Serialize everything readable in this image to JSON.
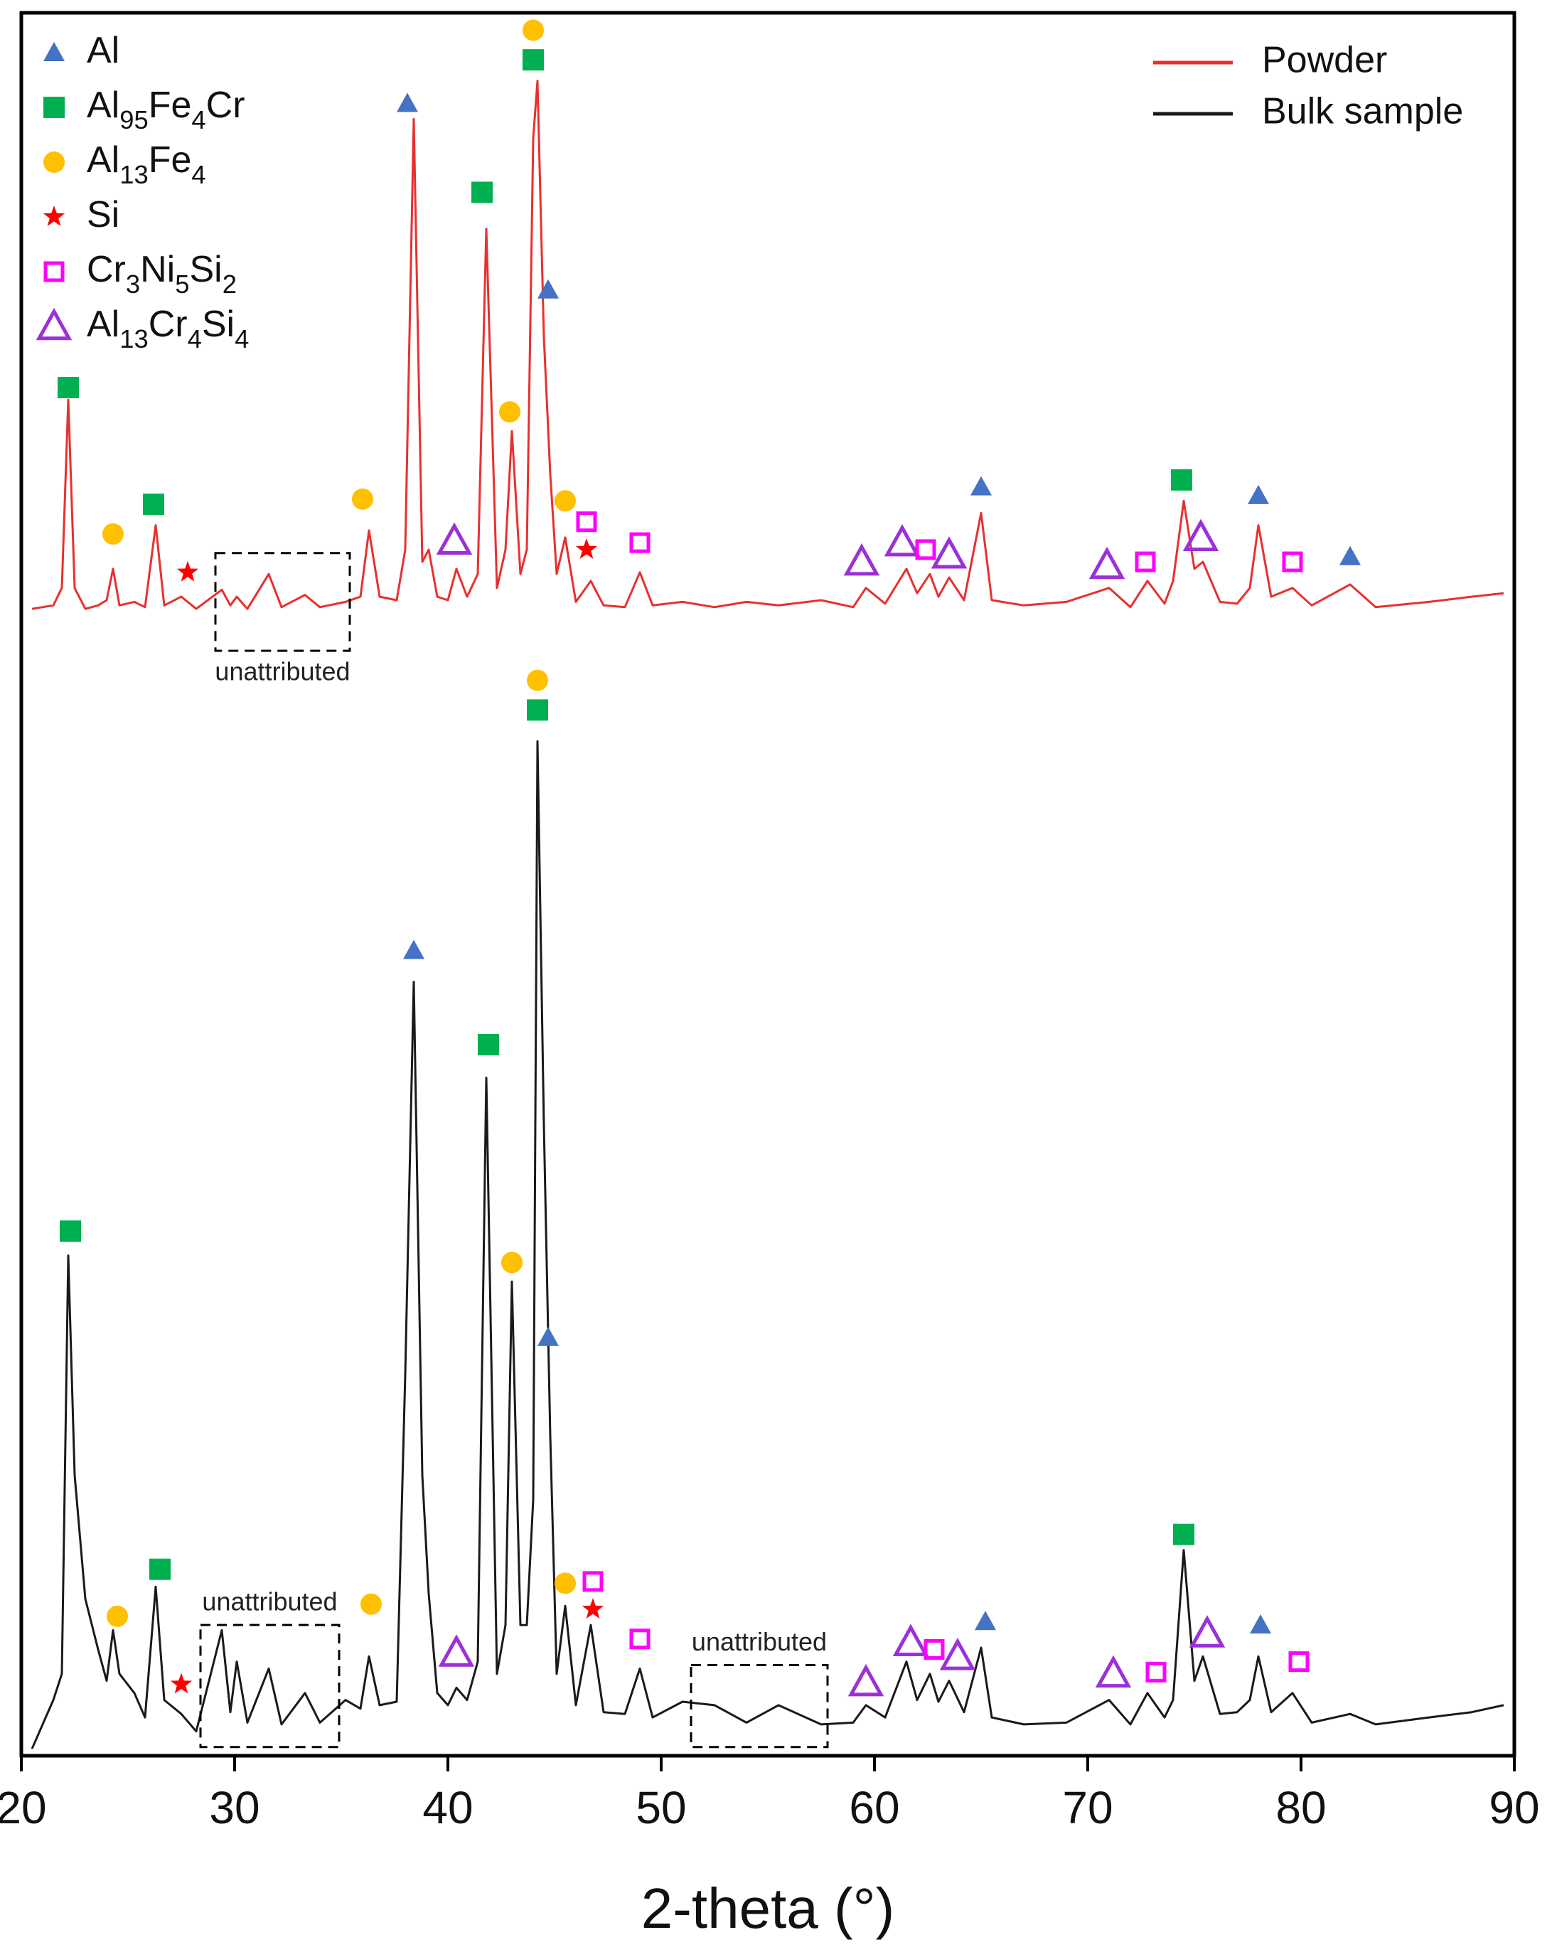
{
  "chart_data": {
    "type": "line",
    "xlabel": "2-theta (°)",
    "xlim": [
      20,
      90
    ],
    "xticks": [
      20,
      30,
      40,
      50,
      60,
      70,
      80,
      90
    ],
    "ylim": [
      0,
      100
    ],
    "x": [
      20.5,
      21.5,
      21.9,
      22.2,
      22.5,
      23.0,
      23.6,
      24.0,
      24.3,
      24.6,
      25.3,
      25.8,
      26.3,
      26.7,
      27.5,
      28.2,
      29.4,
      29.8,
      30.1,
      30.6,
      31.6,
      32.2,
      33.3,
      34.0,
      35.2,
      35.9,
      36.3,
      36.8,
      37.6,
      38.0,
      38.4,
      38.8,
      39.1,
      39.5,
      40.0,
      40.4,
      40.9,
      41.4,
      41.8,
      42.3,
      42.7,
      43.0,
      43.4,
      43.7,
      44.0,
      44.2,
      44.5,
      44.8,
      45.1,
      45.5,
      46.0,
      46.7,
      47.3,
      48.3,
      49.0,
      49.6,
      51.0,
      52.5,
      54.0,
      55.5,
      57.5,
      59.0,
      59.6,
      60.5,
      61.5,
      62.0,
      62.6,
      63.0,
      63.5,
      64.2,
      65.0,
      65.5,
      67.0,
      69.0,
      71.0,
      72.0,
      72.8,
      73.6,
      74.0,
      74.5,
      75.0,
      75.4,
      76.2,
      77.0,
      77.6,
      78.0,
      78.6,
      79.6,
      80.5,
      82.3,
      83.5,
      86.0,
      88.0,
      89.5
    ],
    "series": [
      {
        "name": "Powder",
        "color": "#e8302f",
        "values": [
          65.8,
          66.0,
          67.0,
          77.8,
          67.0,
          65.8,
          66.0,
          66.3,
          68.1,
          66.0,
          66.2,
          65.9,
          70.6,
          66.0,
          66.5,
          65.8,
          66.9,
          66.0,
          66.5,
          65.8,
          67.8,
          65.9,
          66.6,
          65.9,
          66.2,
          66.5,
          70.3,
          66.5,
          66.3,
          69.2,
          93.9,
          68.5,
          69.2,
          66.5,
          66.3,
          68.1,
          66.5,
          67.8,
          87.6,
          67.0,
          69.2,
          76.0,
          67.8,
          69.2,
          92.8,
          96.1,
          81.4,
          73.5,
          67.8,
          69.9,
          66.2,
          67.4,
          66.0,
          65.9,
          67.9,
          66.0,
          66.2,
          65.9,
          66.2,
          66.0,
          66.3,
          65.9,
          67.0,
          66.1,
          68.1,
          66.7,
          67.8,
          66.5,
          67.6,
          66.3,
          71.3,
          66.3,
          66.0,
          66.2,
          67.0,
          65.9,
          67.4,
          66.1,
          67.4,
          72.0,
          68.1,
          68.5,
          66.2,
          66.1,
          67.0,
          70.6,
          66.5,
          67.0,
          66.0,
          67.2,
          65.9,
          66.2,
          66.5,
          66.7
        ]
      },
      {
        "name": "Bulk sample",
        "color": "#1a1a1a",
        "values": [
          0.4,
          3.2,
          4.7,
          28.7,
          16.1,
          9.0,
          6.1,
          4.3,
          7.2,
          4.7,
          3.6,
          2.2,
          9.7,
          3.2,
          2.4,
          1.4,
          7.2,
          2.5,
          5.4,
          1.9,
          5.0,
          1.8,
          3.6,
          1.9,
          3.2,
          2.7,
          5.7,
          2.9,
          3.1,
          21.9,
          44.4,
          16.1,
          9.3,
          3.6,
          2.9,
          3.9,
          3.2,
          5.4,
          38.9,
          4.7,
          7.5,
          27.2,
          7.5,
          7.5,
          14.7,
          58.2,
          36.2,
          18.3,
          4.7,
          8.6,
          2.9,
          7.5,
          2.5,
          2.4,
          5.0,
          2.2,
          3.1,
          2.9,
          1.9,
          2.9,
          1.8,
          1.9,
          2.9,
          2.2,
          5.4,
          3.2,
          4.7,
          3.1,
          4.3,
          2.5,
          6.2,
          2.2,
          1.8,
          1.9,
          3.2,
          1.8,
          3.6,
          2.2,
          3.2,
          11.8,
          4.3,
          5.7,
          2.4,
          2.5,
          3.2,
          5.7,
          2.5,
          3.6,
          1.9,
          2.4,
          1.8,
          2.2,
          2.5,
          2.9
        ]
      }
    ],
    "phases": [
      {
        "name": "Al",
        "shape": "triangle",
        "color": "#4472c4"
      },
      {
        "name": "Al95Fe4Cr",
        "shape": "square",
        "color": "#00b050"
      },
      {
        "name": "Al13Fe4",
        "shape": "circle",
        "color": "#ffc000"
      },
      {
        "name": "Si",
        "shape": "star",
        "color": "#ff0000"
      },
      {
        "name": "Cr3Ni5Si2",
        "shape": "open-square",
        "color": "#ff00ff"
      },
      {
        "name": "Al13Cr4Si4",
        "shape": "open-triangle",
        "color": "#9b30d9"
      }
    ],
    "markers": [
      {
        "phase": 1,
        "x": 22.2,
        "y": 78.5
      },
      {
        "phase": 2,
        "x": 24.3,
        "y": 70.1
      },
      {
        "phase": 1,
        "x": 26.2,
        "y": 71.8
      },
      {
        "phase": 3,
        "x": 27.8,
        "y": 67.9
      },
      {
        "phase": 2,
        "x": 36.0,
        "y": 72.1
      },
      {
        "phase": 0,
        "x": 38.1,
        "y": 94.8
      },
      {
        "phase": 5,
        "x": 40.3,
        "y": 69.7
      },
      {
        "phase": 1,
        "x": 41.6,
        "y": 89.7
      },
      {
        "phase": 2,
        "x": 42.9,
        "y": 77.1
      },
      {
        "phase": 2,
        "x": 44.0,
        "y": 99.0
      },
      {
        "phase": 1,
        "x": 44.0,
        "y": 97.3
      },
      {
        "phase": 0,
        "x": 44.7,
        "y": 84.1
      },
      {
        "phase": 2,
        "x": 45.5,
        "y": 72.0
      },
      {
        "phase": 4,
        "x": 46.5,
        "y": 70.8
      },
      {
        "phase": 3,
        "x": 46.5,
        "y": 69.2
      },
      {
        "phase": 4,
        "x": 49.0,
        "y": 69.6
      },
      {
        "phase": 5,
        "x": 59.4,
        "y": 68.5
      },
      {
        "phase": 5,
        "x": 61.3,
        "y": 69.6
      },
      {
        "phase": 4,
        "x": 62.4,
        "y": 69.2
      },
      {
        "phase": 5,
        "x": 63.5,
        "y": 68.9
      },
      {
        "phase": 0,
        "x": 65.0,
        "y": 72.8
      },
      {
        "phase": 5,
        "x": 70.9,
        "y": 68.3
      },
      {
        "phase": 4,
        "x": 72.7,
        "y": 68.5
      },
      {
        "phase": 1,
        "x": 74.4,
        "y": 73.2
      },
      {
        "phase": 5,
        "x": 75.3,
        "y": 69.9
      },
      {
        "phase": 0,
        "x": 78.0,
        "y": 72.3
      },
      {
        "phase": 4,
        "x": 79.6,
        "y": 68.5
      },
      {
        "phase": 0,
        "x": 82.3,
        "y": 68.8
      },
      {
        "phase": 1,
        "x": 22.3,
        "y": 30.1
      },
      {
        "phase": 2,
        "x": 24.5,
        "y": 8.0
      },
      {
        "phase": 1,
        "x": 26.5,
        "y": 10.7
      },
      {
        "phase": 3,
        "x": 27.5,
        "y": 4.1
      },
      {
        "phase": 2,
        "x": 36.4,
        "y": 8.7
      },
      {
        "phase": 0,
        "x": 38.4,
        "y": 46.2
      },
      {
        "phase": 5,
        "x": 40.4,
        "y": 5.9
      },
      {
        "phase": 1,
        "x": 41.9,
        "y": 40.8
      },
      {
        "phase": 2,
        "x": 43.0,
        "y": 28.3
      },
      {
        "phase": 0,
        "x": 44.7,
        "y": 24.0
      },
      {
        "phase": 2,
        "x": 44.2,
        "y": 61.7
      },
      {
        "phase": 1,
        "x": 44.2,
        "y": 60.0
      },
      {
        "phase": 2,
        "x": 45.5,
        "y": 9.9
      },
      {
        "phase": 4,
        "x": 46.8,
        "y": 10.0
      },
      {
        "phase": 3,
        "x": 46.8,
        "y": 8.4
      },
      {
        "phase": 4,
        "x": 49.0,
        "y": 6.7
      },
      {
        "phase": 5,
        "x": 59.6,
        "y": 4.2
      },
      {
        "phase": 5,
        "x": 61.7,
        "y": 6.5
      },
      {
        "phase": 4,
        "x": 62.8,
        "y": 6.1
      },
      {
        "phase": 5,
        "x": 63.9,
        "y": 5.7
      },
      {
        "phase": 0,
        "x": 65.2,
        "y": 7.7
      },
      {
        "phase": 5,
        "x": 71.2,
        "y": 4.7
      },
      {
        "phase": 4,
        "x": 73.2,
        "y": 4.8
      },
      {
        "phase": 1,
        "x": 74.5,
        "y": 12.7
      },
      {
        "phase": 5,
        "x": 75.6,
        "y": 7.0
      },
      {
        "phase": 0,
        "x": 78.1,
        "y": 7.5
      },
      {
        "phase": 4,
        "x": 79.9,
        "y": 5.4
      }
    ],
    "annotations": [
      {
        "text": "unattributed",
        "x0": 29.1,
        "x1": 35.4,
        "y0": 63.4,
        "y1": 69.0
      },
      {
        "text": "unattributed",
        "x0": 28.4,
        "x1": 34.9,
        "y0": 0.5,
        "y1": 7.5
      },
      {
        "text": "unattributed",
        "x0": 51.4,
        "x1": 57.8,
        "y0": 0.5,
        "y1": 5.2
      }
    ]
  }
}
